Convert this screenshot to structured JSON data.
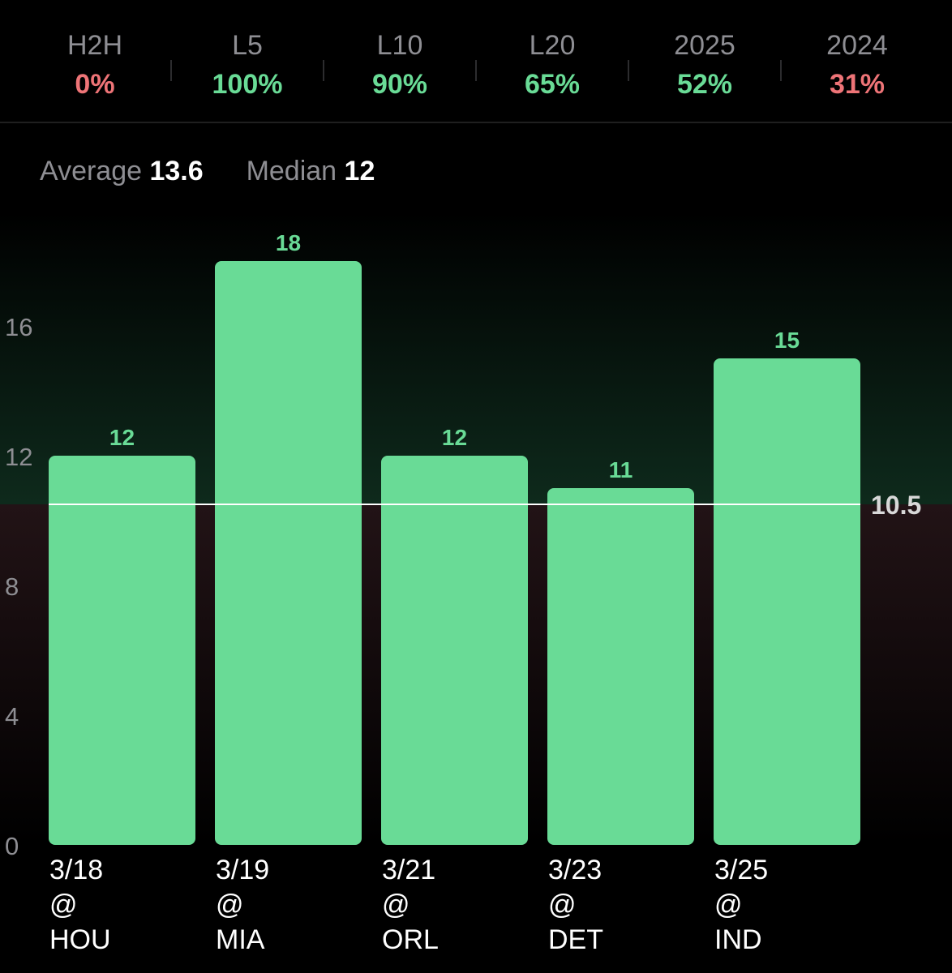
{
  "stats": [
    {
      "label": "H2H",
      "value": "0%",
      "status": "under"
    },
    {
      "label": "L5",
      "value": "100%",
      "status": "over"
    },
    {
      "label": "L10",
      "value": "90%",
      "status": "over"
    },
    {
      "label": "L20",
      "value": "65%",
      "status": "over"
    },
    {
      "label": "2025",
      "value": "52%",
      "status": "over"
    },
    {
      "label": "2024",
      "value": "31%",
      "status": "under"
    }
  ],
  "summary": {
    "average_label": "Average",
    "average_value": "13.6",
    "median_label": "Median",
    "median_value": "12"
  },
  "colors": {
    "over": "#69db96",
    "under": "#ee7477",
    "bar": "#69db96",
    "line": "#ffffff"
  },
  "chart_data": {
    "type": "bar",
    "categories": [
      [
        "3/18",
        "@",
        "HOU"
      ],
      [
        "3/19",
        "@",
        "MIA"
      ],
      [
        "3/21",
        "@",
        "ORL"
      ],
      [
        "3/23",
        "@",
        "DET"
      ],
      [
        "3/25",
        "@",
        "IND"
      ]
    ],
    "values": [
      12,
      18,
      12,
      11,
      15
    ],
    "value_labels": [
      "12",
      "18",
      "12",
      "11",
      "15"
    ],
    "yticks": [
      0,
      4,
      8,
      12,
      16
    ],
    "ylim": [
      0,
      18
    ],
    "line": {
      "value": 10.5,
      "label": "10.5"
    },
    "title": "",
    "xlabel": "",
    "ylabel": ""
  }
}
